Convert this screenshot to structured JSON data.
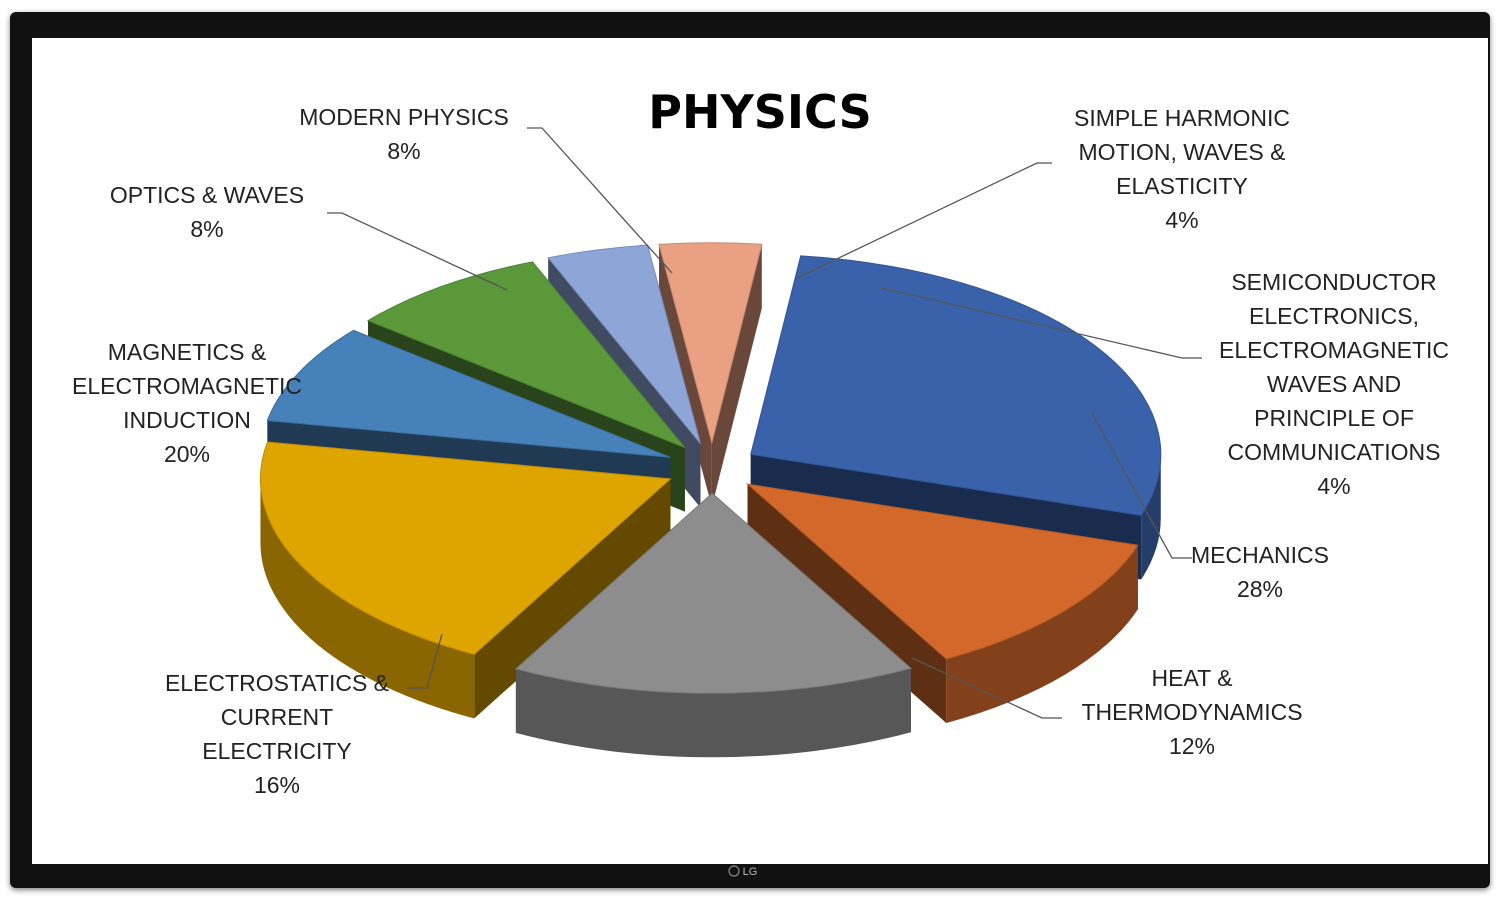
{
  "chart_data": {
    "type": "pie",
    "title": "PHYSICS",
    "slices": [
      {
        "label_lines": [
          "MECHANICS"
        ],
        "value": 28,
        "value_label": "28%",
        "color": "#3a62ab"
      },
      {
        "label_lines": [
          "HEAT &",
          "THERMODYNAMICS"
        ],
        "value": 12,
        "value_label": "12%",
        "color": "#d2692a"
      },
      {
        "label_lines": [
          "ELECTROSTATICS &",
          "CURRENT",
          "ELECTRICITY"
        ],
        "value": 16,
        "value_label": "16%",
        "color": "#8d8d8d"
      },
      {
        "label_lines": [
          "MAGNETICS &",
          "ELECTROMAGNETIC",
          "INDUCTION"
        ],
        "value": 20,
        "value_label": "20%",
        "color": "#dea500"
      },
      {
        "label_lines": [
          "OPTICS & WAVES"
        ],
        "value": 8,
        "value_label": "8%",
        "color": "#4681ba"
      },
      {
        "label_lines": [
          "MODERN PHYSICS"
        ],
        "value": 8,
        "value_label": "8%",
        "color": "#5a983a"
      },
      {
        "label_lines": [
          "SIMPLE HARMONIC",
          "MOTION, WAVES &",
          "ELASTICITY"
        ],
        "value": 4,
        "value_label": "4%",
        "color": "#8ea5d8"
      },
      {
        "label_lines": [
          "SEMICONDUCTOR",
          "ELECTRONICS,",
          "ELECTROMAGNETIC",
          "WAVES AND",
          "PRINCIPLE OF",
          "COMMUNICATIONS"
        ],
        "value": 4,
        "value_label": "4%",
        "color": "#eaa183"
      }
    ]
  },
  "device": {
    "logo": "LG"
  }
}
